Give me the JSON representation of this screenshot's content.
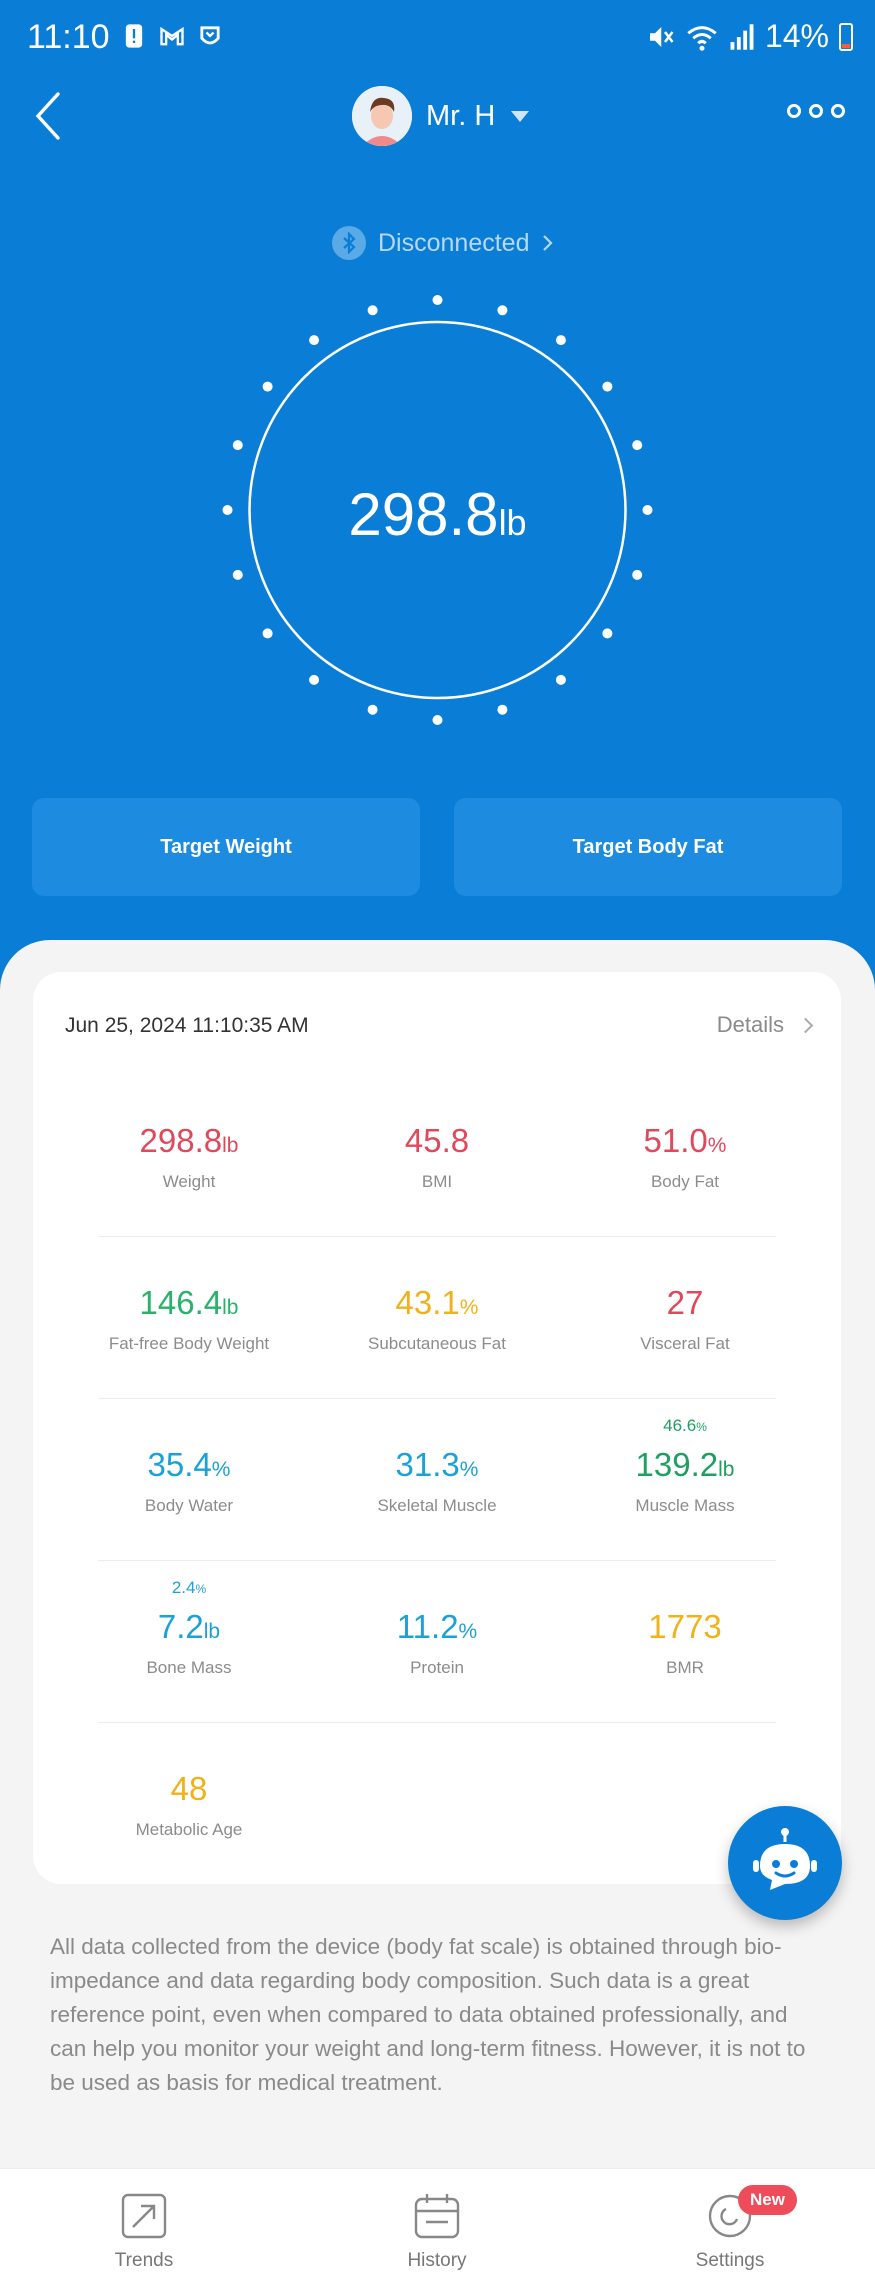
{
  "status_bar": {
    "time": "11:10",
    "battery": "14%"
  },
  "header": {
    "profile_name": "Mr. H"
  },
  "connection": {
    "label": "Disconnected"
  },
  "reading": {
    "value": "298.8",
    "unit": "lb"
  },
  "targets": {
    "weight_label": "Target Weight",
    "body_fat_label": "Target Body Fat"
  },
  "card": {
    "date": "Jun 25, 2024 11:10:35 AM",
    "details_label": "Details",
    "metrics": [
      {
        "value": "298.8",
        "unit": "lb",
        "label": "Weight"
      },
      {
        "value": "45.8",
        "unit": "",
        "label": "BMI"
      },
      {
        "value": "51.0",
        "unit": "%",
        "label": "Body Fat"
      },
      {
        "value": "146.4",
        "unit": "lb",
        "label": "Fat-free Body Weight"
      },
      {
        "value": "43.1",
        "unit": "%",
        "label": "Subcutaneous Fat"
      },
      {
        "value": "27",
        "unit": "",
        "label": "Visceral Fat"
      },
      {
        "value": "35.4",
        "unit": "%",
        "label": "Body Water"
      },
      {
        "value": "31.3",
        "unit": "%",
        "label": "Skeletal Muscle"
      },
      {
        "value": "139.2",
        "unit": "lb",
        "label": "Muscle Mass",
        "pct": "46.6",
        "pct_unit": "%"
      },
      {
        "value": "7.2",
        "unit": "lb",
        "label": "Bone Mass",
        "pct": "2.4",
        "pct_unit": "%"
      },
      {
        "value": "11.2",
        "unit": "%",
        "label": "Protein"
      },
      {
        "value": "1773",
        "unit": "",
        "label": "BMR"
      },
      {
        "value": "48",
        "unit": "",
        "label": "Metabolic Age"
      }
    ]
  },
  "disclaimer": "All data collected from the device (body fat scale) is obtained through bio-impedance and data regarding body composition. Such data is a great reference point, even when compared to data obtained professionally, and can help you monitor your weight and long-term fitness. However, it is not to be used as basis for medical treatment.",
  "nav": {
    "trends": "Trends",
    "history": "History",
    "settings": "Settings",
    "new_badge": "New"
  },
  "colors": {
    "primary": "#0a7ed6",
    "red": "#e0485c",
    "green": "#27b36a",
    "yellow": "#f0b21a",
    "blue": "#1aa2d8"
  }
}
